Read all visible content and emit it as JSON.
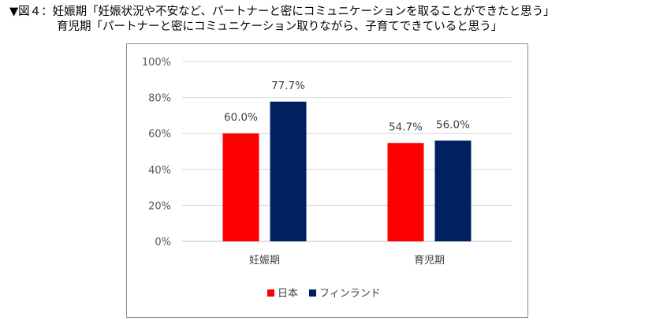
{
  "heading": {
    "line1": "▼図４：妊娠期「妊娠状況や不安など、パートナーと密にコミュニケーションを取ることができたと思う」",
    "line2": "育児期「パートナーと密にコミュニケーション取りながら、子育てできていると思う」"
  },
  "chart_data": {
    "type": "bar",
    "categories": [
      "妊娠期",
      "育児期"
    ],
    "series": [
      {
        "name": "日本",
        "color": "#ff0000",
        "values": [
          60.0,
          54.7
        ],
        "labels": [
          "60.0%",
          "54.7%"
        ]
      },
      {
        "name": "フィンランド",
        "color": "#002060",
        "values": [
          77.7,
          56.0
        ],
        "labels": [
          "77.7%",
          "56.0%"
        ]
      }
    ],
    "y_ticks": [
      "0%",
      "20%",
      "40%",
      "60%",
      "80%",
      "100%"
    ],
    "ylim": [
      0,
      100
    ],
    "grid": true,
    "legend_position": "bottom"
  }
}
